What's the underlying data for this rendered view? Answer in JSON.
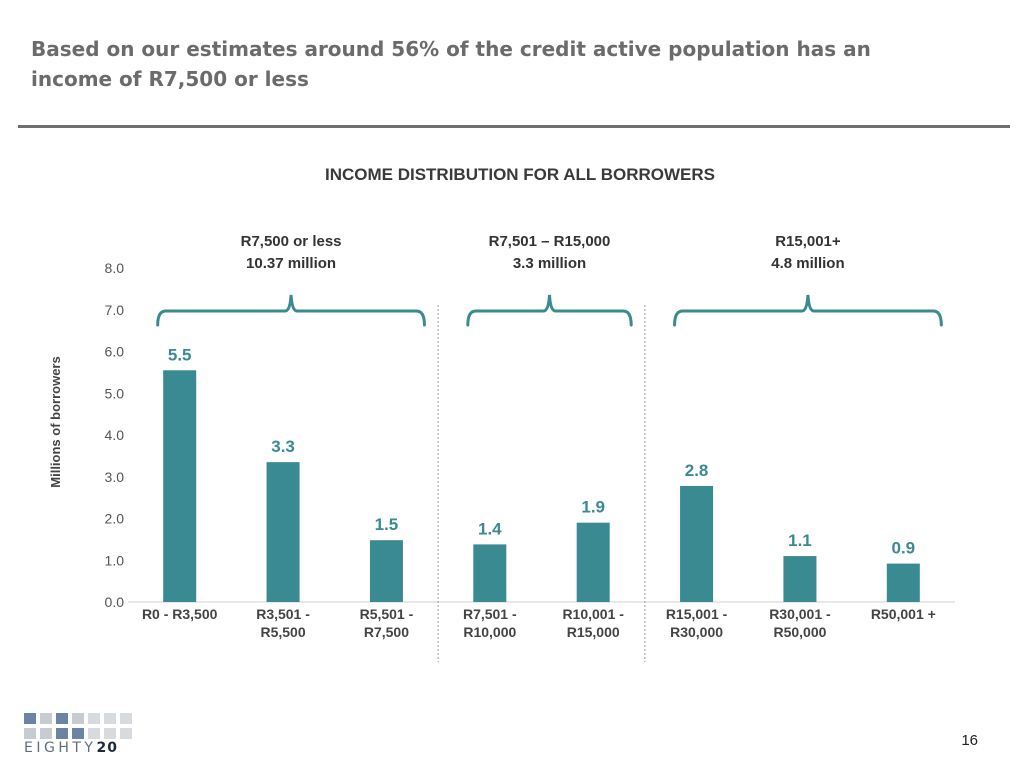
{
  "headline": {
    "line1": "Based on our estimates around 56% of the credit active population has an",
    "line2": "income of R7,500 or less"
  },
  "page_number": "16",
  "logo": {
    "text_light": "EIGHTY",
    "text_bold": "20"
  },
  "colors": {
    "bar": "#3a8a91",
    "bracket": "#3a8a91",
    "rule": "#6e6e6e",
    "value_label": "#3a8a91"
  },
  "chart_data": {
    "type": "bar",
    "title": "INCOME DISTRIBUTION FOR ALL BORROWERS",
    "ylabel": "Millions of borrowers",
    "xlabel": "",
    "ylim": [
      0,
      8
    ],
    "yticks": [
      "0.0",
      "1.0",
      "2.0",
      "3.0",
      "4.0",
      "5.0",
      "6.0",
      "7.0",
      "8.0"
    ],
    "categories": [
      [
        "R0 - R3,500"
      ],
      [
        "R3,501 -",
        "R5,500"
      ],
      [
        "R5,501 -",
        "R7,500"
      ],
      [
        "R7,501 -",
        "R10,000"
      ],
      [
        "R10,001 -",
        "R15,000"
      ],
      [
        "R15,001 -",
        "R30,000"
      ],
      [
        "R30,001 -",
        "R50,000"
      ],
      [
        "R50,001 +"
      ]
    ],
    "values": [
      5.55,
      3.35,
      1.48,
      1.38,
      1.9,
      2.78,
      1.1,
      0.92
    ],
    "data_labels": [
      "5.5",
      "3.3",
      "1.5",
      "1.4",
      "1.9",
      "2.8",
      "1.1",
      "0.9"
    ],
    "groups": [
      {
        "label": "R7,500 or less",
        "total": "10.37 million",
        "start": 0,
        "end": 2
      },
      {
        "label": "R7,501 – R15,000",
        "total": "3.3 million",
        "start": 3,
        "end": 4
      },
      {
        "label": "R15,001+",
        "total": "4.8 million",
        "start": 5,
        "end": 7
      }
    ],
    "group_separators_after": [
      2,
      4
    ],
    "grid": false,
    "legend": "none"
  }
}
